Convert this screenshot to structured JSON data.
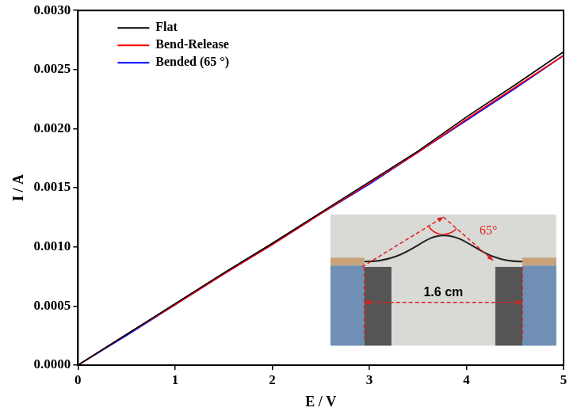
{
  "chart_data": {
    "type": "line",
    "x_label": "E / V",
    "y_label": "I / A",
    "x": [
      0,
      0.5,
      1,
      1.5,
      2,
      2.5,
      3,
      3.5,
      4,
      4.5,
      5
    ],
    "series": [
      {
        "name": "Flat",
        "color": "#000000",
        "line_style": "solid",
        "values": [
          0,
          0.00026,
          0.00052,
          0.00078,
          0.00103,
          0.00129,
          0.00155,
          0.00181,
          0.0021,
          0.00237,
          0.00265
        ]
      },
      {
        "name": "Bend-Release",
        "color": "#ff0000",
        "line_style": "solid",
        "values": [
          0,
          0.00026,
          0.00051,
          0.00077,
          0.00102,
          0.00128,
          0.00154,
          0.0018,
          0.00208,
          0.00235,
          0.00262
        ]
      },
      {
        "name": "Bended (65 °)",
        "color": "#0000ff",
        "line_style": "solid",
        "values": [
          0,
          0.00025,
          0.00051,
          0.00077,
          0.00102,
          0.00128,
          0.00153,
          0.0018,
          0.00207,
          0.00234,
          0.00262
        ]
      }
    ],
    "xlim": [
      0,
      5
    ],
    "xticks": [
      0,
      1,
      2,
      3,
      4,
      5
    ],
    "ylim": [
      0,
      0.003
    ],
    "yticks": [
      {
        "value": 0,
        "label": "0.0000"
      },
      {
        "value": 0.0005,
        "label": "0.0005"
      },
      {
        "value": 0.001,
        "label": "0.0010"
      },
      {
        "value": 0.0015,
        "label": "0.0015"
      },
      {
        "value": 0.002,
        "label": "0.0020"
      },
      {
        "value": 0.0025,
        "label": "0.0025"
      },
      {
        "value": 0.003,
        "label": "0.0030"
      }
    ],
    "grid": false,
    "legend": "upper left",
    "annotations": [
      {
        "text": "65°"
      },
      {
        "text": "1.6 cm"
      }
    ]
  }
}
